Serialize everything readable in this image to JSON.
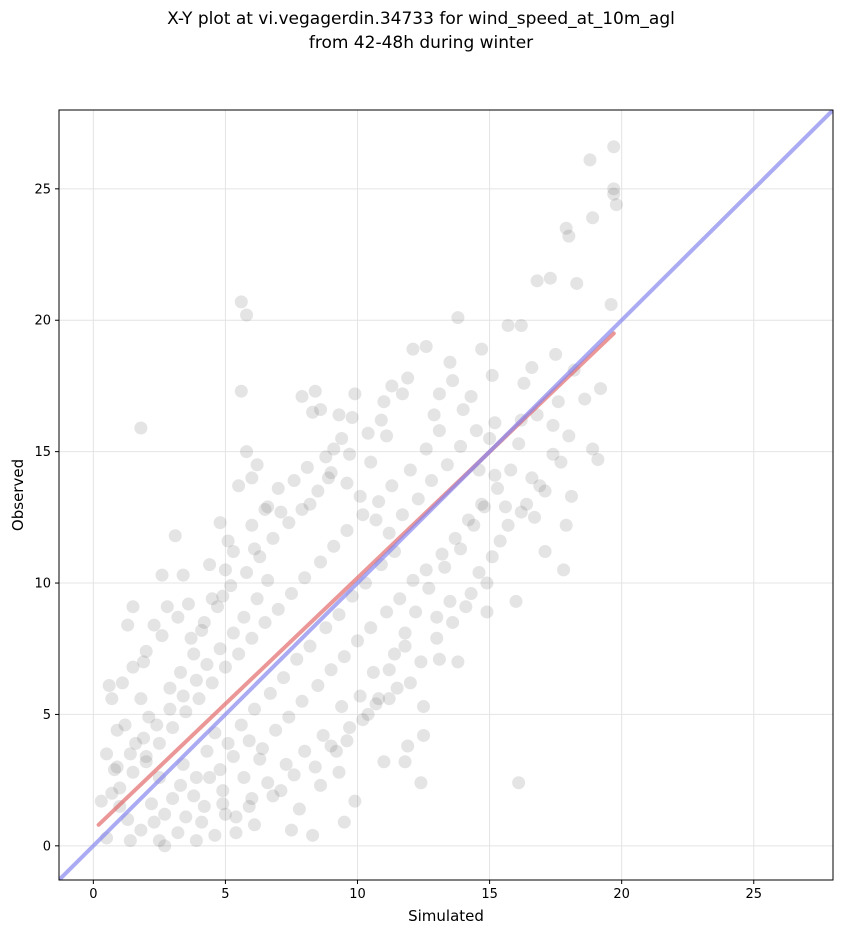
{
  "chart_data": {
    "type": "scatter",
    "title_lines": [
      "X-Y plot at vi.vegagerdin.34733 for wind_speed_at_10m_agl",
      "from 42-48h during winter"
    ],
    "xlabel": "Simulated",
    "ylabel": "Observed",
    "xlim": [
      -1.3,
      28
    ],
    "ylim": [
      -1.3,
      28
    ],
    "xticks": [
      0,
      5,
      10,
      15,
      20,
      25
    ],
    "yticks": [
      0,
      5,
      10,
      15,
      20,
      25
    ],
    "grid": true,
    "colors": {
      "points": "#555555",
      "fit_line": "#e06060",
      "identity_line": "#8888ee",
      "grid": "#e4e4e4"
    },
    "fit_line": {
      "x": [
        0.2,
        19.7
      ],
      "y": [
        0.8,
        19.5
      ]
    },
    "identity_line": {
      "x": [
        -1.3,
        28
      ],
      "y": [
        -1.3,
        28
      ]
    },
    "points": [
      [
        1.8,
        15.9
      ],
      [
        5.6,
        20.7
      ],
      [
        5.8,
        20.2
      ],
      [
        5.6,
        17.3
      ],
      [
        5.8,
        15.0
      ],
      [
        6.2,
        14.5
      ],
      [
        6.0,
        14.0
      ],
      [
        5.5,
        13.7
      ],
      [
        4.8,
        12.3
      ],
      [
        3.1,
        11.8
      ],
      [
        3.4,
        10.3
      ],
      [
        2.6,
        10.3
      ],
      [
        1.5,
        9.1
      ],
      [
        1.3,
        8.4
      ],
      [
        2.8,
        9.1
      ],
      [
        16.1,
        2.4
      ],
      [
        12.4,
        2.4
      ],
      [
        11.8,
        3.2
      ],
      [
        11.0,
        3.2
      ],
      [
        11.9,
        3.8
      ],
      [
        12.5,
        4.2
      ],
      [
        13.8,
        7.0
      ],
      [
        14.9,
        8.9
      ],
      [
        16.0,
        9.3
      ],
      [
        16.7,
        12.5
      ],
      [
        17.1,
        11.2
      ],
      [
        17.8,
        10.5
      ],
      [
        17.9,
        12.2
      ],
      [
        18.1,
        13.3
      ],
      [
        17.7,
        14.6
      ],
      [
        19.1,
        14.7
      ],
      [
        18.9,
        15.1
      ],
      [
        19.2,
        17.4
      ],
      [
        19.6,
        20.6
      ],
      [
        18.3,
        21.4
      ],
      [
        17.3,
        21.6
      ],
      [
        16.8,
        21.5
      ],
      [
        17.9,
        23.5
      ],
      [
        18.0,
        23.2
      ],
      [
        18.9,
        23.9
      ],
      [
        18.8,
        26.1
      ],
      [
        19.7,
        26.6
      ],
      [
        19.7,
        25.0
      ],
      [
        19.8,
        24.4
      ],
      [
        19.7,
        24.8
      ],
      [
        13.8,
        20.1
      ],
      [
        15.7,
        19.8
      ],
      [
        16.2,
        19.8
      ],
      [
        16.6,
        18.2
      ],
      [
        14.7,
        18.9
      ],
      [
        12.1,
        18.9
      ],
      [
        12.6,
        19.0
      ],
      [
        9.9,
        17.2
      ],
      [
        8.4,
        17.3
      ],
      [
        7.9,
        17.1
      ],
      [
        8.6,
        16.6
      ],
      [
        8.3,
        16.5
      ],
      [
        9.3,
        16.4
      ],
      [
        9.8,
        16.3
      ],
      [
        10.4,
        15.7
      ],
      [
        11.1,
        15.6
      ],
      [
        9.1,
        15.1
      ],
      [
        6.1,
        11.3
      ],
      [
        6.5,
        12.8
      ],
      [
        5.1,
        11.6
      ],
      [
        4.4,
        10.7
      ],
      [
        4.9,
        9.5
      ],
      [
        4.1,
        8.2
      ],
      [
        3.8,
        7.3
      ],
      [
        2.6,
        8.0
      ],
      [
        1.9,
        7.0
      ],
      [
        1.1,
        6.2
      ],
      [
        0.6,
        6.1
      ],
      [
        0.7,
        5.6
      ],
      [
        0.5,
        3.5
      ],
      [
        0.9,
        4.4
      ],
      [
        0.8,
        2.9
      ],
      [
        0.7,
        2.0
      ],
      [
        1.0,
        1.5
      ],
      [
        0.5,
        0.3
      ],
      [
        0.3,
        1.7
      ],
      [
        1.4,
        0.2
      ],
      [
        2.5,
        0.2
      ],
      [
        2.7,
        0.0
      ],
      [
        3.9,
        0.2
      ],
      [
        4.6,
        0.4
      ],
      [
        5.4,
        0.5
      ],
      [
        6.1,
        0.8
      ],
      [
        7.5,
        0.6
      ],
      [
        8.3,
        0.4
      ],
      [
        9.5,
        0.9
      ],
      [
        9.9,
        1.7
      ],
      [
        9.3,
        2.8
      ],
      [
        10.4,
        5.0
      ],
      [
        10.8,
        5.6
      ],
      [
        11.2,
        5.6
      ],
      [
        11.5,
        6.0
      ],
      [
        12.0,
        6.2
      ],
      [
        12.5,
        5.3
      ],
      [
        13.1,
        7.1
      ],
      [
        13.0,
        8.7
      ],
      [
        13.5,
        9.3
      ],
      [
        14.3,
        9.6
      ],
      [
        14.9,
        10.0
      ],
      [
        15.4,
        11.6
      ],
      [
        15.6,
        12.9
      ],
      [
        16.4,
        13.0
      ],
      [
        16.6,
        14.0
      ],
      [
        17.1,
        13.5
      ],
      [
        17.4,
        16.0
      ],
      [
        16.2,
        16.2
      ],
      [
        15.2,
        16.1
      ],
      [
        14.3,
        17.1
      ],
      [
        13.6,
        17.7
      ],
      [
        13.1,
        17.2
      ],
      [
        11.3,
        17.5
      ],
      [
        11.7,
        17.2
      ],
      [
        11.0,
        16.9
      ],
      [
        10.5,
        14.6
      ],
      [
        9.7,
        14.9
      ],
      [
        8.9,
        14.0
      ],
      [
        8.2,
        13.0
      ],
      [
        7.0,
        13.6
      ],
      [
        6.6,
        12.9
      ],
      [
        6.0,
        12.2
      ],
      [
        5.3,
        11.2
      ],
      [
        5.0,
        10.5
      ],
      [
        4.5,
        9.4
      ],
      [
        3.6,
        9.2
      ],
      [
        3.2,
        8.7
      ],
      [
        2.3,
        8.4
      ],
      [
        2.0,
        7.4
      ],
      [
        1.5,
        6.8
      ],
      [
        1.8,
        5.6
      ],
      [
        2.1,
        4.9
      ],
      [
        1.2,
        4.6
      ],
      [
        1.6,
        3.9
      ],
      [
        2.0,
        3.2
      ],
      [
        2.5,
        2.6
      ],
      [
        3.0,
        1.8
      ],
      [
        3.5,
        1.1
      ],
      [
        4.2,
        1.5
      ],
      [
        4.9,
        2.1
      ],
      [
        5.7,
        2.6
      ],
      [
        6.3,
        3.3
      ],
      [
        7.1,
        2.1
      ],
      [
        7.8,
        1.4
      ],
      [
        8.6,
        2.3
      ],
      [
        9.2,
        3.6
      ],
      [
        9.7,
        4.5
      ],
      [
        10.1,
        5.7
      ],
      [
        10.6,
        6.6
      ],
      [
        11.4,
        7.3
      ],
      [
        11.8,
        8.1
      ],
      [
        12.2,
        8.9
      ],
      [
        12.7,
        9.8
      ],
      [
        13.3,
        10.6
      ],
      [
        13.9,
        11.3
      ],
      [
        14.4,
        12.2
      ],
      [
        14.8,
        12.9
      ],
      [
        15.3,
        13.6
      ],
      [
        15.8,
        14.3
      ],
      [
        16.1,
        15.3
      ],
      [
        16.8,
        16.4
      ],
      [
        17.6,
        16.9
      ],
      [
        18.2,
        18.1
      ],
      [
        17.5,
        18.7
      ],
      [
        16.3,
        17.6
      ],
      [
        15.1,
        17.9
      ],
      [
        14.0,
        16.6
      ],
      [
        13.1,
        15.8
      ],
      [
        12.6,
        15.1
      ],
      [
        12.0,
        14.3
      ],
      [
        11.3,
        13.7
      ],
      [
        10.8,
        13.1
      ],
      [
        10.2,
        12.6
      ],
      [
        9.6,
        12.0
      ],
      [
        9.1,
        11.4
      ],
      [
        8.6,
        10.8
      ],
      [
        8.0,
        10.2
      ],
      [
        7.5,
        9.6
      ],
      [
        7.0,
        9.0
      ],
      [
        6.5,
        8.5
      ],
      [
        6.0,
        7.9
      ],
      [
        5.5,
        7.3
      ],
      [
        5.0,
        6.8
      ],
      [
        4.5,
        6.2
      ],
      [
        4.0,
        5.6
      ],
      [
        3.5,
        5.1
      ],
      [
        3.0,
        4.5
      ],
      [
        2.5,
        3.9
      ],
      [
        2.0,
        3.4
      ],
      [
        1.5,
        2.8
      ],
      [
        1.0,
        2.2
      ],
      [
        4.6,
        4.3
      ],
      [
        5.1,
        3.9
      ],
      [
        5.6,
        4.6
      ],
      [
        6.1,
        5.2
      ],
      [
        6.7,
        5.8
      ],
      [
        7.2,
        6.4
      ],
      [
        7.7,
        7.1
      ],
      [
        8.2,
        7.6
      ],
      [
        8.8,
        8.3
      ],
      [
        9.3,
        8.8
      ],
      [
        9.8,
        9.5
      ],
      [
        10.3,
        10.0
      ],
      [
        10.9,
        10.7
      ],
      [
        11.4,
        11.2
      ],
      [
        3.4,
        3.1
      ],
      [
        3.9,
        2.6
      ],
      [
        4.3,
        3.6
      ],
      [
        4.8,
        2.9
      ],
      [
        5.3,
        3.4
      ],
      [
        5.9,
        4.0
      ],
      [
        6.4,
        3.7
      ],
      [
        6.9,
        4.4
      ],
      [
        7.4,
        4.9
      ],
      [
        7.9,
        5.5
      ],
      [
        8.5,
        6.1
      ],
      [
        9.0,
        6.7
      ],
      [
        9.5,
        7.2
      ],
      [
        10.0,
        7.8
      ],
      [
        10.5,
        8.3
      ],
      [
        11.1,
        8.9
      ],
      [
        11.6,
        9.4
      ],
      [
        12.1,
        10.1
      ],
      [
        12.6,
        10.5
      ],
      [
        13.2,
        11.1
      ],
      [
        13.7,
        11.7
      ],
      [
        14.2,
        12.4
      ],
      [
        14.7,
        13.0
      ],
      [
        15.2,
        14.1
      ],
      [
        2.2,
        1.6
      ],
      [
        2.7,
        1.2
      ],
      [
        3.3,
        2.3
      ],
      [
        3.8,
        1.9
      ],
      [
        4.4,
        2.6
      ],
      [
        4.9,
        1.6
      ],
      [
        5.4,
        1.1
      ],
      [
        6.0,
        1.8
      ],
      [
        6.6,
        2.4
      ],
      [
        7.3,
        3.1
      ],
      [
        8.0,
        3.6
      ],
      [
        8.7,
        4.2
      ],
      [
        9.4,
        5.3
      ],
      [
        2.9,
        6.0
      ],
      [
        3.3,
        6.6
      ],
      [
        3.7,
        7.9
      ],
      [
        4.2,
        8.5
      ],
      [
        4.7,
        9.1
      ],
      [
        5.2,
        9.9
      ],
      [
        5.8,
        10.4
      ],
      [
        6.3,
        11.0
      ],
      [
        6.8,
        11.7
      ],
      [
        7.4,
        12.3
      ],
      [
        7.9,
        12.8
      ],
      [
        8.5,
        13.5
      ],
      [
        9.0,
        14.2
      ],
      [
        9.6,
        13.8
      ],
      [
        10.1,
        13.3
      ],
      [
        10.7,
        12.4
      ],
      [
        11.2,
        11.9
      ],
      [
        11.7,
        12.6
      ],
      [
        12.3,
        13.2
      ],
      [
        12.8,
        13.9
      ],
      [
        13.4,
        14.5
      ],
      [
        13.9,
        15.2
      ],
      [
        14.5,
        15.8
      ],
      [
        14.6,
        14.3
      ],
      [
        15.0,
        15.5
      ],
      [
        12.9,
        16.4
      ],
      [
        13.5,
        18.4
      ],
      [
        11.9,
        17.8
      ],
      [
        10.9,
        16.2
      ],
      [
        9.4,
        15.5
      ],
      [
        8.8,
        14.8
      ],
      [
        8.1,
        14.4
      ],
      [
        7.6,
        13.9
      ],
      [
        7.1,
        12.7
      ],
      [
        6.6,
        10.1
      ],
      [
        6.2,
        9.4
      ],
      [
        5.7,
        8.7
      ],
      [
        5.3,
        8.1
      ],
      [
        4.8,
        7.5
      ],
      [
        4.3,
        6.9
      ],
      [
        3.9,
        6.3
      ],
      [
        3.4,
        5.7
      ],
      [
        2.9,
        5.2
      ],
      [
        2.4,
        4.6
      ],
      [
        1.9,
        4.1
      ],
      [
        1.4,
        3.5
      ],
      [
        0.9,
        3.0
      ],
      [
        1.3,
        1.0
      ],
      [
        1.8,
        0.6
      ],
      [
        2.3,
        0.9
      ],
      [
        3.2,
        0.5
      ],
      [
        4.1,
        0.9
      ],
      [
        5.0,
        1.2
      ],
      [
        5.9,
        1.5
      ],
      [
        6.8,
        1.9
      ],
      [
        7.6,
        2.7
      ],
      [
        8.4,
        3.0
      ],
      [
        9.0,
        3.8
      ],
      [
        9.6,
        4.0
      ],
      [
        10.2,
        4.8
      ],
      [
        10.7,
        5.4
      ],
      [
        11.2,
        6.7
      ],
      [
        11.8,
        7.6
      ],
      [
        12.4,
        7.0
      ],
      [
        13.0,
        7.9
      ],
      [
        13.6,
        8.5
      ],
      [
        14.1,
        9.1
      ],
      [
        14.6,
        10.4
      ],
      [
        15.1,
        11.0
      ],
      [
        15.7,
        12.2
      ],
      [
        16.2,
        12.7
      ],
      [
        16.9,
        13.7
      ],
      [
        17.4,
        14.9
      ],
      [
        18.0,
        15.6
      ],
      [
        18.6,
        17.0
      ]
    ]
  }
}
